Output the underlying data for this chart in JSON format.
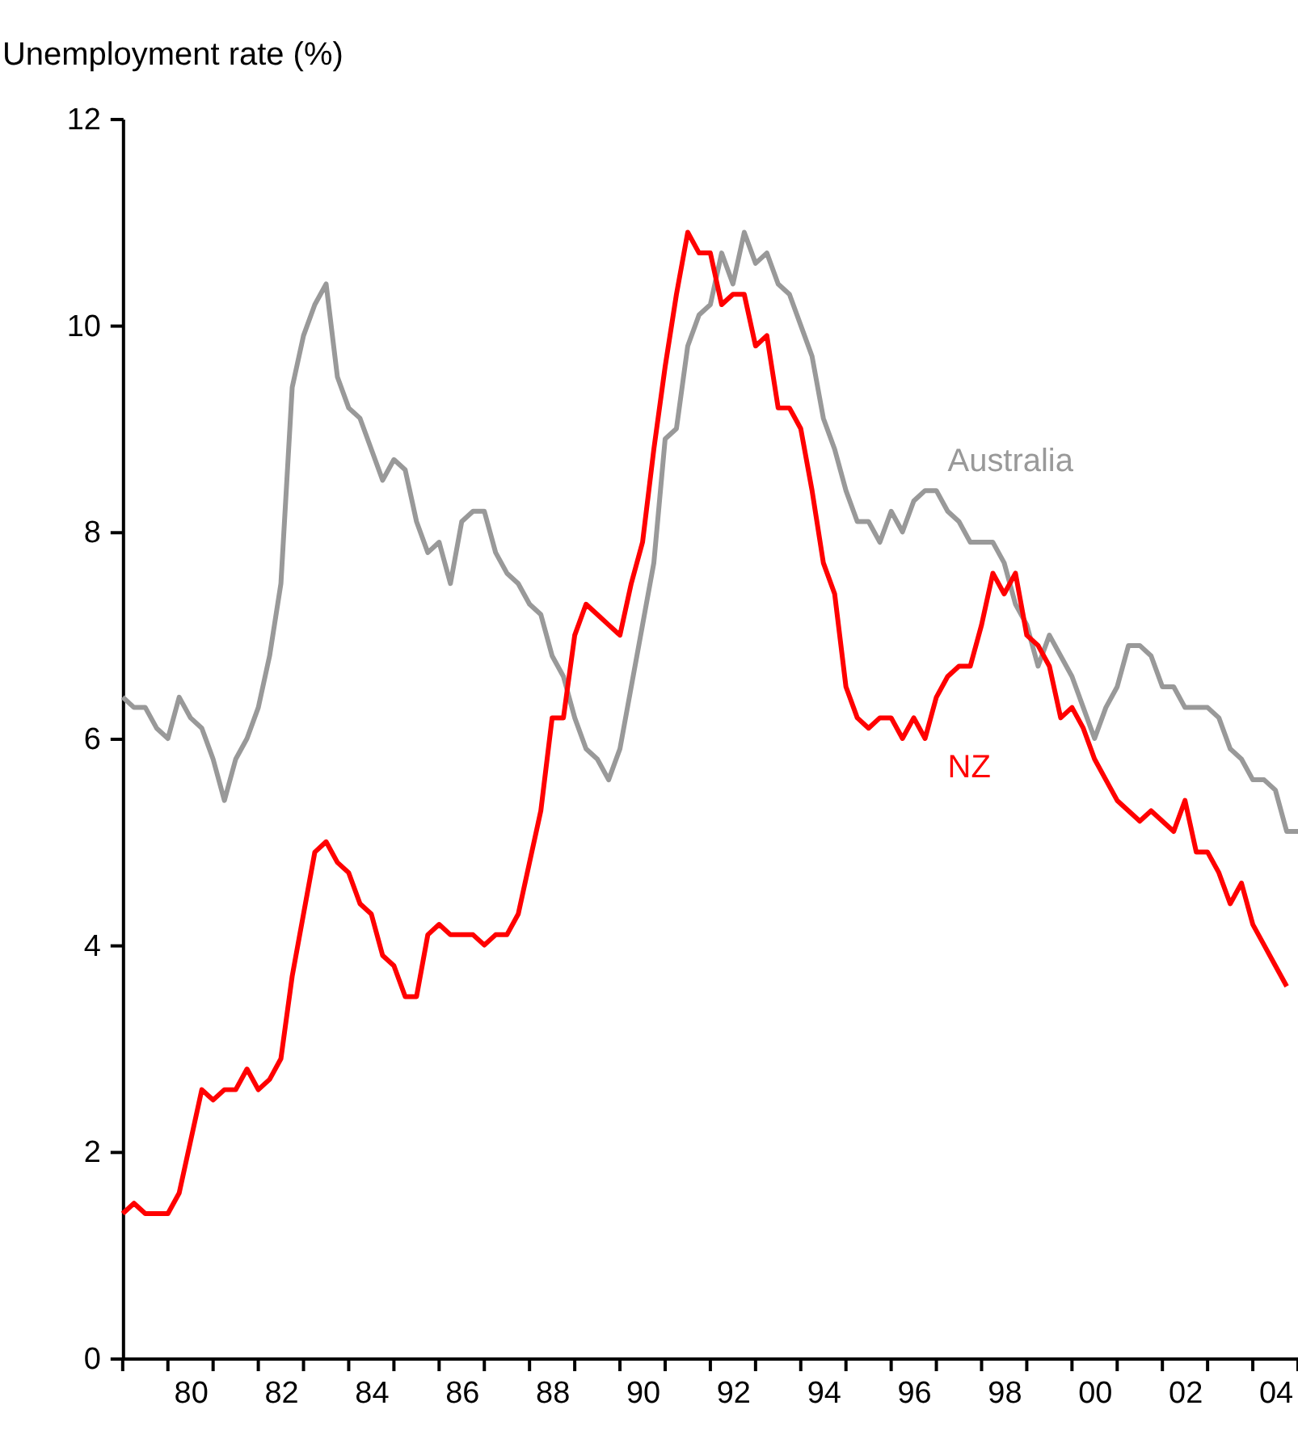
{
  "chart_data": {
    "type": "line",
    "ylabel": "Unemployment rate (%)",
    "categories": [
      null,
      null,
      null,
      null,
      null,
      null,
      "80",
      null,
      null,
      null,
      null,
      null,
      null,
      null,
      "82",
      null,
      null,
      null,
      null,
      null,
      null,
      null,
      "84",
      null,
      null,
      null,
      null,
      null,
      null,
      null,
      "86",
      null,
      null,
      null,
      null,
      null,
      null,
      null,
      "88",
      null,
      null,
      null,
      null,
      null,
      null,
      null,
      "90",
      null,
      null,
      null,
      null,
      null,
      null,
      null,
      "92",
      null,
      null,
      null,
      null,
      null,
      null,
      null,
      "94",
      null,
      null,
      null,
      null,
      null,
      null,
      null,
      "96",
      null,
      null,
      null,
      null,
      null,
      null,
      null,
      "98",
      null,
      null,
      null,
      null,
      null,
      null,
      null,
      "00",
      null,
      null,
      null,
      null,
      null,
      null,
      null,
      "02",
      null,
      null,
      null,
      null,
      null,
      null,
      null,
      "04",
      null,
      null
    ],
    "series": [
      {
        "name": "Australia",
        "color": "#999999",
        "values": [
          6.4,
          6.3,
          6.3,
          6.1,
          6.0,
          6.4,
          6.2,
          6.1,
          5.8,
          5.4,
          5.8,
          6.0,
          6.3,
          6.8,
          7.5,
          9.4,
          9.9,
          10.2,
          10.4,
          9.5,
          9.2,
          9.1,
          8.8,
          8.5,
          8.7,
          8.6,
          8.1,
          7.8,
          7.9,
          7.5,
          8.1,
          8.2,
          8.2,
          7.8,
          7.6,
          7.5,
          7.3,
          7.2,
          6.8,
          6.6,
          6.2,
          5.9,
          5.8,
          5.6,
          5.9,
          6.5,
          7.1,
          7.7,
          8.9,
          9.0,
          9.8,
          10.1,
          10.2,
          10.7,
          10.4,
          10.9,
          10.6,
          10.7,
          10.4,
          10.3,
          10.0,
          9.7,
          9.1,
          8.8,
          8.4,
          8.1,
          8.1,
          7.9,
          8.2,
          8.0,
          8.3,
          8.4,
          8.4,
          8.2,
          8.1,
          7.9,
          7.9,
          7.9,
          7.7,
          7.3,
          7.1,
          6.7,
          7.0,
          6.8,
          6.6,
          6.3,
          6.0,
          6.3,
          6.5,
          6.9,
          6.9,
          6.8,
          6.5,
          6.5,
          6.3,
          6.3,
          6.3,
          6.2,
          5.9,
          5.8,
          5.6,
          5.6,
          5.5,
          5.1,
          5.1
        ]
      },
      {
        "name": "NZ",
        "color": "#ff0000",
        "values": [
          1.4,
          1.5,
          1.4,
          1.4,
          1.4,
          1.6,
          2.1,
          2.6,
          2.5,
          2.6,
          2.6,
          2.8,
          2.6,
          2.7,
          2.9,
          3.7,
          4.3,
          4.9,
          5.0,
          4.8,
          4.7,
          4.4,
          4.3,
          3.9,
          3.8,
          3.5,
          3.5,
          4.1,
          4.2,
          4.1,
          4.1,
          4.1,
          4.0,
          4.1,
          4.1,
          4.3,
          4.8,
          5.3,
          6.2,
          6.2,
          7.0,
          7.3,
          7.2,
          7.1,
          7.0,
          7.5,
          7.9,
          8.8,
          9.6,
          10.3,
          10.9,
          10.7,
          10.7,
          10.2,
          10.3,
          10.3,
          9.8,
          9.9,
          9.2,
          9.2,
          9.0,
          8.4,
          7.7,
          7.4,
          6.5,
          6.2,
          6.1,
          6.2,
          6.2,
          6.0,
          6.2,
          6.0,
          6.4,
          6.6,
          6.7,
          6.7,
          7.1,
          7.6,
          7.4,
          7.6,
          7.0,
          6.9,
          6.7,
          6.2,
          6.3,
          6.1,
          5.8,
          5.6,
          5.4,
          5.3,
          5.2,
          5.3,
          5.2,
          5.1,
          5.4,
          4.9,
          4.9,
          4.7,
          4.4,
          4.6,
          4.2,
          4.0,
          3.8,
          3.6,
          null
        ]
      }
    ],
    "ylim": [
      0,
      12
    ],
    "yticks": [
      0,
      2,
      4,
      6,
      8,
      10,
      12
    ],
    "grid": false,
    "marker": "none",
    "line_style": "solid"
  }
}
